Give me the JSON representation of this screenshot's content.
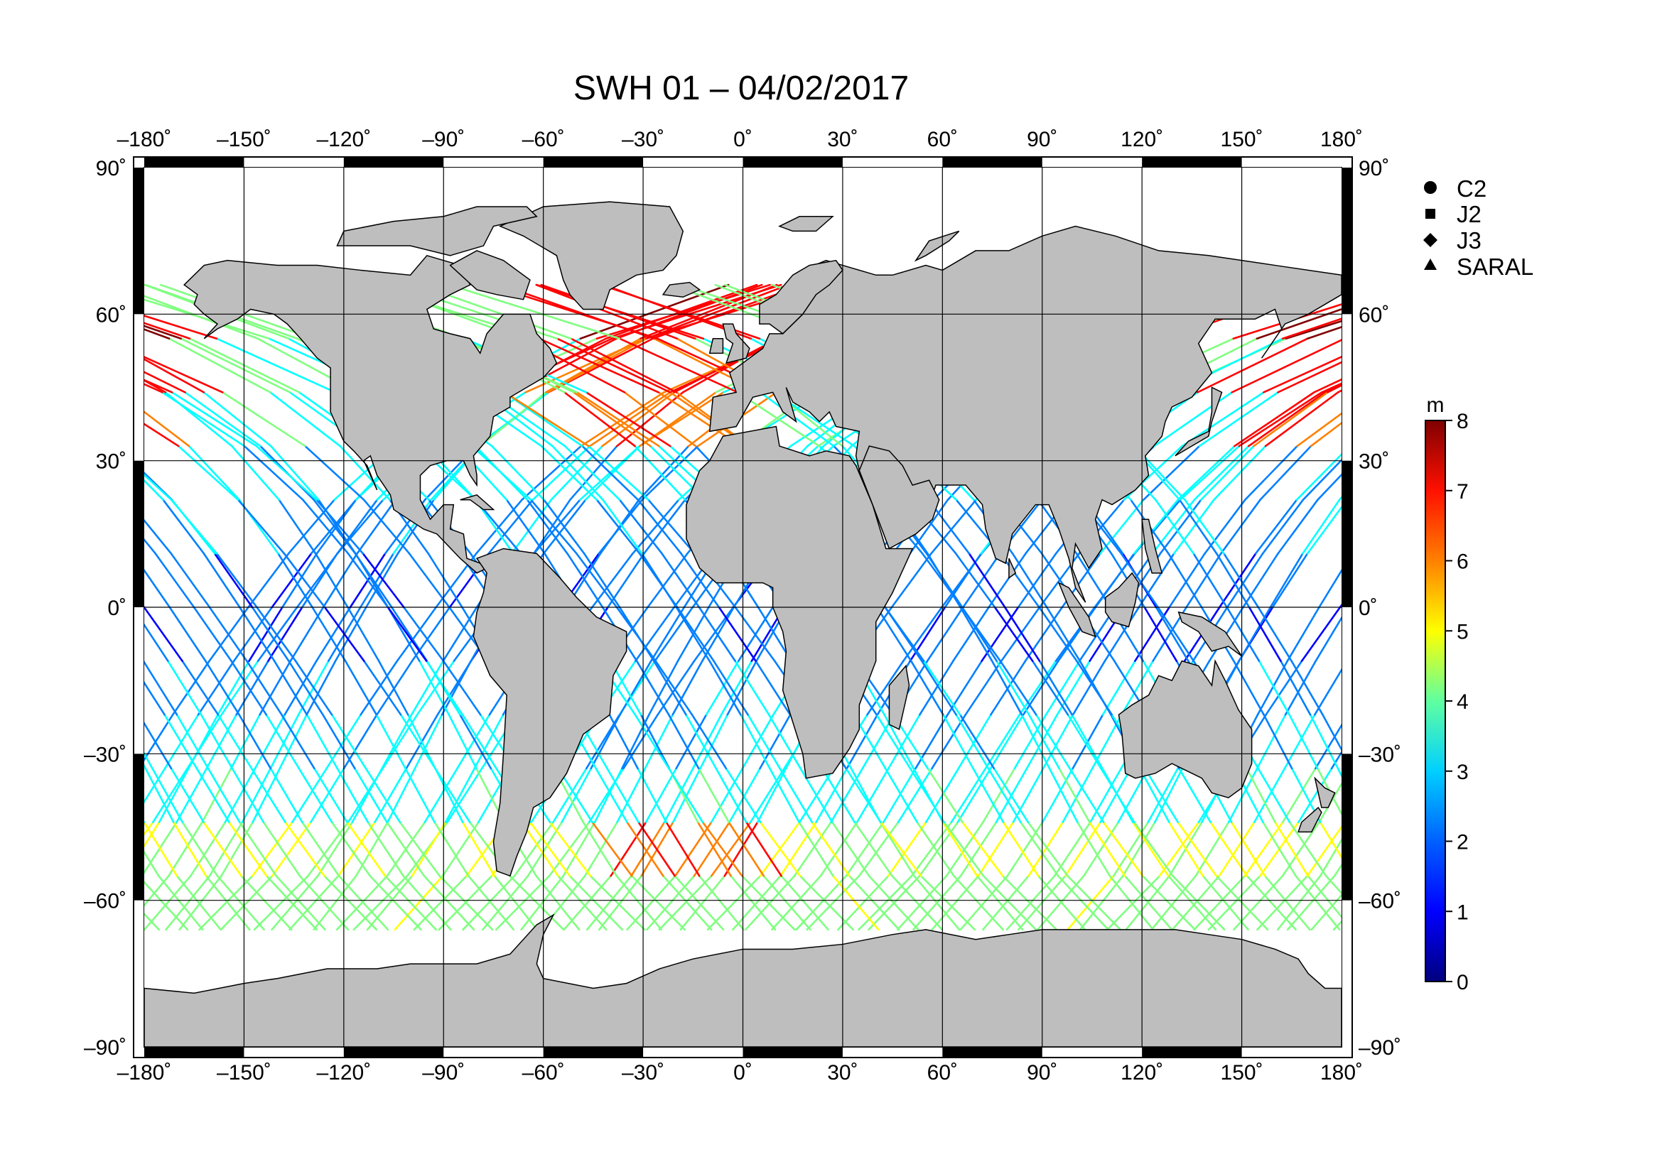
{
  "title": "SWH 01 – 04/02/2017",
  "map": {
    "lon_ticks": [
      "–180",
      "–150",
      "–120",
      "–90",
      "–60",
      "–30",
      "0",
      "30",
      "60",
      "90",
      "120",
      "150",
      "180"
    ],
    "lat_ticks": [
      "90",
      "60",
      "30",
      "0",
      "–30",
      "–60",
      "–90"
    ],
    "degree_symbol": "˚",
    "lon_range": [
      -180,
      180
    ],
    "lat_range": [
      -90,
      90
    ],
    "land_color": "#bebebe",
    "grid": true
  },
  "legend": {
    "placement": "top-right",
    "items": [
      {
        "label": "C2",
        "marker": "circle"
      },
      {
        "label": "J2",
        "marker": "square"
      },
      {
        "label": "J3",
        "marker": "diamond"
      },
      {
        "label": "SARAL",
        "marker": "triangle"
      }
    ]
  },
  "colorbar": {
    "unit": "m",
    "min": 0,
    "max": 8,
    "ticks": [
      "0",
      "1",
      "2",
      "3",
      "4",
      "5",
      "6",
      "7",
      "8"
    ],
    "colormap": "jet",
    "colors": [
      "#00007f",
      "#0000ff",
      "#0080ff",
      "#00ffff",
      "#80ff80",
      "#ffff00",
      "#ff8000",
      "#ff0000",
      "#7f0000"
    ]
  }
}
